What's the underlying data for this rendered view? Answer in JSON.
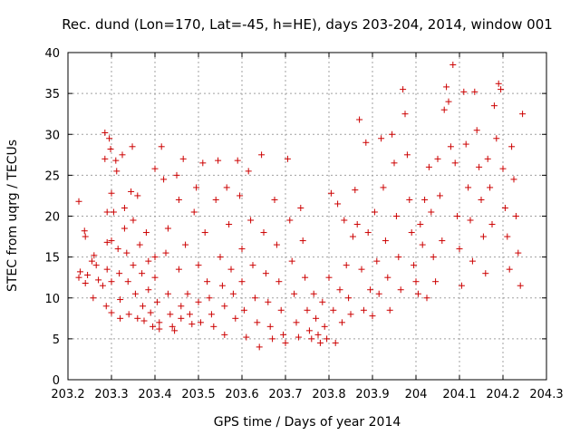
{
  "chart_data": {
    "type": "scatter",
    "title": "Rec. dund (Lon=170, Lat=-45, h=HE), days 203-204, 2014, window 001",
    "xlabel": "GPS time / Days of year 2014",
    "ylabel": "STEC from uqrg / TECUs",
    "xlim": [
      203.2,
      204.3
    ],
    "ylim": [
      0,
      40
    ],
    "xticks": [
      "203.2",
      "203.3",
      "203.4",
      "203.5",
      "203.6",
      "203.7",
      "203.8",
      "203.9",
      "204",
      "204.1",
      "204.2",
      "204.3"
    ],
    "yticks": [
      "0",
      "5",
      "10",
      "15",
      "20",
      "25",
      "30",
      "35",
      "40"
    ],
    "grid": true,
    "marker": "+",
    "color": "#cc0000",
    "series": [
      {
        "points": [
          [
            203.225,
            21.8
          ],
          [
            203.225,
            12.5
          ],
          [
            203.228,
            13.2
          ],
          [
            203.238,
            18.2
          ],
          [
            203.24,
            17.5
          ],
          [
            203.24,
            11.8
          ],
          [
            203.245,
            12.8
          ],
          [
            203.255,
            14.5
          ],
          [
            203.26,
            15.2
          ],
          [
            203.258,
            10.0
          ],
          [
            203.265,
            14.0
          ],
          [
            203.27,
            12.2
          ],
          [
            203.28,
            11.5
          ],
          [
            203.285,
            27.0
          ],
          [
            203.285,
            30.2
          ],
          [
            203.29,
            20.5
          ],
          [
            203.29,
            16.8
          ],
          [
            203.29,
            13.5
          ],
          [
            203.288,
            9.0
          ],
          [
            203.295,
            29.5
          ],
          [
            203.298,
            28.2
          ],
          [
            203.3,
            22.8
          ],
          [
            203.3,
            17.0
          ],
          [
            203.3,
            12.0
          ],
          [
            203.3,
            8.2
          ],
          [
            203.305,
            20.5
          ],
          [
            203.31,
            26.8
          ],
          [
            203.312,
            25.5
          ],
          [
            203.315,
            16.0
          ],
          [
            203.318,
            13.0
          ],
          [
            203.32,
            9.8
          ],
          [
            203.32,
            7.5
          ],
          [
            203.325,
            27.5
          ],
          [
            203.33,
            21.0
          ],
          [
            203.33,
            18.5
          ],
          [
            203.335,
            15.5
          ],
          [
            203.338,
            12.0
          ],
          [
            203.34,
            8.0
          ],
          [
            203.345,
            23.0
          ],
          [
            203.348,
            28.5
          ],
          [
            203.35,
            19.5
          ],
          [
            203.35,
            14.0
          ],
          [
            203.355,
            10.5
          ],
          [
            203.36,
            7.5
          ],
          [
            203.36,
            22.5
          ],
          [
            203.365,
            16.5
          ],
          [
            203.37,
            13.0
          ],
          [
            203.372,
            9.0
          ],
          [
            203.375,
            7.2
          ],
          [
            203.38,
            18.0
          ],
          [
            203.385,
            14.5
          ],
          [
            203.385,
            11.0
          ],
          [
            203.39,
            8.2
          ],
          [
            203.395,
            6.5
          ],
          [
            203.4,
            25.8
          ],
          [
            203.4,
            15.0
          ],
          [
            203.4,
            12.5
          ],
          [
            203.405,
            9.5
          ],
          [
            203.41,
            7.0
          ],
          [
            203.41,
            6.2
          ],
          [
            203.415,
            28.5
          ],
          [
            203.42,
            24.5
          ],
          [
            203.425,
            15.5
          ],
          [
            203.43,
            18.5
          ],
          [
            203.43,
            10.5
          ],
          [
            203.435,
            8.0
          ],
          [
            203.44,
            6.5
          ],
          [
            203.445,
            6.0
          ],
          [
            203.45,
            25.0
          ],
          [
            203.455,
            22.0
          ],
          [
            203.455,
            13.5
          ],
          [
            203.46,
            9.0
          ],
          [
            203.46,
            7.5
          ],
          [
            203.465,
            27.0
          ],
          [
            203.47,
            16.5
          ],
          [
            203.475,
            10.5
          ],
          [
            203.48,
            8.0
          ],
          [
            203.485,
            6.8
          ],
          [
            203.49,
            20.5
          ],
          [
            203.495,
            23.5
          ],
          [
            203.5,
            14.0
          ],
          [
            203.5,
            9.5
          ],
          [
            203.505,
            7.0
          ],
          [
            203.51,
            26.5
          ],
          [
            203.515,
            18.0
          ],
          [
            203.52,
            12.0
          ],
          [
            203.525,
            10.0
          ],
          [
            203.53,
            8.0
          ],
          [
            203.535,
            6.5
          ],
          [
            203.54,
            22.0
          ],
          [
            203.545,
            26.8
          ],
          [
            203.55,
            15.0
          ],
          [
            203.555,
            11.5
          ],
          [
            203.56,
            9.0
          ],
          [
            203.56,
            5.5
          ],
          [
            203.565,
            23.5
          ],
          [
            203.57,
            19.0
          ],
          [
            203.575,
            13.5
          ],
          [
            203.58,
            10.5
          ],
          [
            203.585,
            7.5
          ],
          [
            203.59,
            26.8
          ],
          [
            203.595,
            22.5
          ],
          [
            203.6,
            16.0
          ],
          [
            203.6,
            12.0
          ],
          [
            203.605,
            8.5
          ],
          [
            203.61,
            5.2
          ],
          [
            203.615,
            25.5
          ],
          [
            203.62,
            19.5
          ],
          [
            203.625,
            14.0
          ],
          [
            203.63,
            10.0
          ],
          [
            203.635,
            7.0
          ],
          [
            203.64,
            4.0
          ],
          [
            203.645,
            27.5
          ],
          [
            203.65,
            18.0
          ],
          [
            203.655,
            13.0
          ],
          [
            203.66,
            9.5
          ],
          [
            203.665,
            6.5
          ],
          [
            203.67,
            5.0
          ],
          [
            203.675,
            22.0
          ],
          [
            203.68,
            16.5
          ],
          [
            203.685,
            12.0
          ],
          [
            203.69,
            8.5
          ],
          [
            203.695,
            5.5
          ],
          [
            203.7,
            4.5
          ],
          [
            203.705,
            27.0
          ],
          [
            203.71,
            19.5
          ],
          [
            203.715,
            14.5
          ],
          [
            203.72,
            10.5
          ],
          [
            203.725,
            7.0
          ],
          [
            203.73,
            5.2
          ],
          [
            203.735,
            21.0
          ],
          [
            203.74,
            17.0
          ],
          [
            203.745,
            12.5
          ],
          [
            203.75,
            8.5
          ],
          [
            203.755,
            6.0
          ],
          [
            203.76,
            5.0
          ],
          [
            203.765,
            10.5
          ],
          [
            203.77,
            7.5
          ],
          [
            203.775,
            5.5
          ],
          [
            203.78,
            4.5
          ],
          [
            203.785,
            9.5
          ],
          [
            203.79,
            6.5
          ],
          [
            203.795,
            5.0
          ],
          [
            203.8,
            12.5
          ],
          [
            203.805,
            22.8
          ],
          [
            203.81,
            8.5
          ],
          [
            203.815,
            4.5
          ],
          [
            203.82,
            21.5
          ],
          [
            203.825,
            11.0
          ],
          [
            203.83,
            7.0
          ],
          [
            203.835,
            19.5
          ],
          [
            203.84,
            14.0
          ],
          [
            203.845,
            10.0
          ],
          [
            203.85,
            8.0
          ],
          [
            203.855,
            17.5
          ],
          [
            203.86,
            23.2
          ],
          [
            203.865,
            19.0
          ],
          [
            203.87,
            31.8
          ],
          [
            203.875,
            13.5
          ],
          [
            203.88,
            8.5
          ],
          [
            203.885,
            29.0
          ],
          [
            203.89,
            18.0
          ],
          [
            203.895,
            11.0
          ],
          [
            203.9,
            7.8
          ],
          [
            203.905,
            20.5
          ],
          [
            203.91,
            14.5
          ],
          [
            203.915,
            10.5
          ],
          [
            203.92,
            29.5
          ],
          [
            203.925,
            23.5
          ],
          [
            203.93,
            17.0
          ],
          [
            203.935,
            12.5
          ],
          [
            203.94,
            8.5
          ],
          [
            203.945,
            30.0
          ],
          [
            203.95,
            26.5
          ],
          [
            203.955,
            20.0
          ],
          [
            203.96,
            15.0
          ],
          [
            203.965,
            11.0
          ],
          [
            203.97,
            35.5
          ],
          [
            203.975,
            32.5
          ],
          [
            203.98,
            27.5
          ],
          [
            203.985,
            22.0
          ],
          [
            203.99,
            18.0
          ],
          [
            203.995,
            14.0
          ],
          [
            204.0,
            12.0
          ],
          [
            204.005,
            10.5
          ],
          [
            204.01,
            19.0
          ],
          [
            204.015,
            16.5
          ],
          [
            204.02,
            22.0
          ],
          [
            204.025,
            10.0
          ],
          [
            204.03,
            26.0
          ],
          [
            204.035,
            20.5
          ],
          [
            204.04,
            15.0
          ],
          [
            204.045,
            12.0
          ],
          [
            204.05,
            27.0
          ],
          [
            204.055,
            22.5
          ],
          [
            204.06,
            17.0
          ],
          [
            204.065,
            33.0
          ],
          [
            204.07,
            35.8
          ],
          [
            204.075,
            34.0
          ],
          [
            204.08,
            28.5
          ],
          [
            204.085,
            38.5
          ],
          [
            204.09,
            26.5
          ],
          [
            204.095,
            20.0
          ],
          [
            204.1,
            16.0
          ],
          [
            204.105,
            11.5
          ],
          [
            204.11,
            35.2
          ],
          [
            204.115,
            28.8
          ],
          [
            204.12,
            23.5
          ],
          [
            204.125,
            19.5
          ],
          [
            204.13,
            14.5
          ],
          [
            204.135,
            35.2
          ],
          [
            204.14,
            30.5
          ],
          [
            204.145,
            26.0
          ],
          [
            204.15,
            22.0
          ],
          [
            204.155,
            17.5
          ],
          [
            204.16,
            13.0
          ],
          [
            204.165,
            27.0
          ],
          [
            204.17,
            23.5
          ],
          [
            204.175,
            19.0
          ],
          [
            204.18,
            33.5
          ],
          [
            204.185,
            29.5
          ],
          [
            204.19,
            36.2
          ],
          [
            204.195,
            35.5
          ],
          [
            204.2,
            25.8
          ],
          [
            204.205,
            21.0
          ],
          [
            204.21,
            17.5
          ],
          [
            204.215,
            13.5
          ],
          [
            204.22,
            28.5
          ],
          [
            204.225,
            24.5
          ],
          [
            204.23,
            20.0
          ],
          [
            204.235,
            15.5
          ],
          [
            204.24,
            11.5
          ],
          [
            204.245,
            32.5
          ]
        ]
      }
    ]
  }
}
